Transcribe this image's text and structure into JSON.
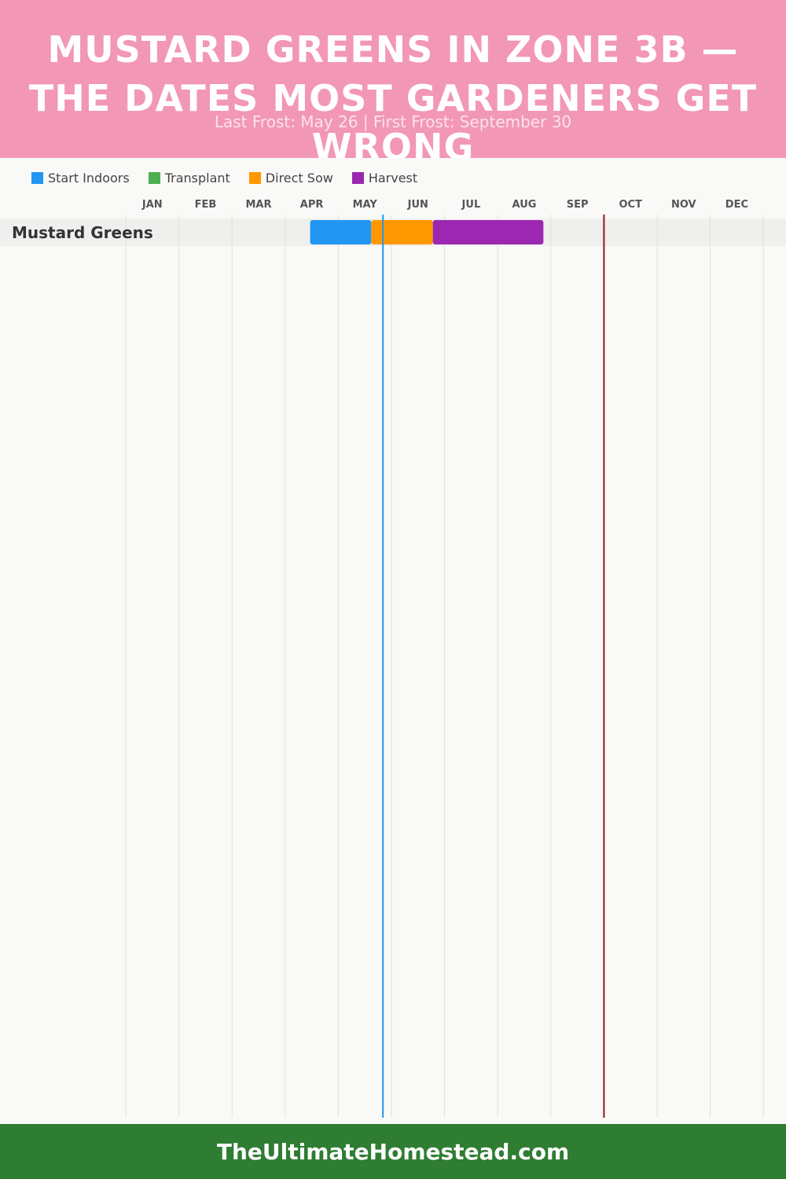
{
  "header": {
    "title": "MUSTARD GREENS IN ZONE 3B — THE DATES MOST GARDENERS GET WRONG",
    "subtitle": "Last Frost: May 26 | First Frost: September 30"
  },
  "legend": [
    {
      "label": "Start Indoors",
      "color": "#2196f3"
    },
    {
      "label": "Transplant",
      "color": "#4caf50"
    },
    {
      "label": "Direct Sow",
      "color": "#ff9800"
    },
    {
      "label": "Harvest",
      "color": "#9c27b0"
    }
  ],
  "chart_data": {
    "type": "gantt",
    "months": [
      "JAN",
      "FEB",
      "MAR",
      "APR",
      "MAY",
      "JUN",
      "JUL",
      "AUG",
      "SEP",
      "OCT",
      "NOV",
      "DEC"
    ],
    "rows": [
      {
        "label": "Mustard Greens",
        "segments": [
          {
            "phase": "Start Indoors",
            "start": 3.47,
            "end": 4.62,
            "color": "#2196f3"
          },
          {
            "phase": "Direct Sow",
            "start": 4.62,
            "end": 5.78,
            "color": "#ff9800"
          },
          {
            "phase": "Harvest",
            "start": 5.78,
            "end": 7.86,
            "color": "#9c27b0"
          }
        ]
      }
    ],
    "markers": [
      {
        "name": "Last Frost",
        "date": "May 26",
        "month_pos": 4.84,
        "color": "#2196f3"
      },
      {
        "name": "First Frost",
        "date": "September 30",
        "month_pos": 9.0,
        "color": "#8b1a1a"
      }
    ],
    "grid": true
  },
  "footer": {
    "text": "TheUltimateHomestead.com"
  }
}
